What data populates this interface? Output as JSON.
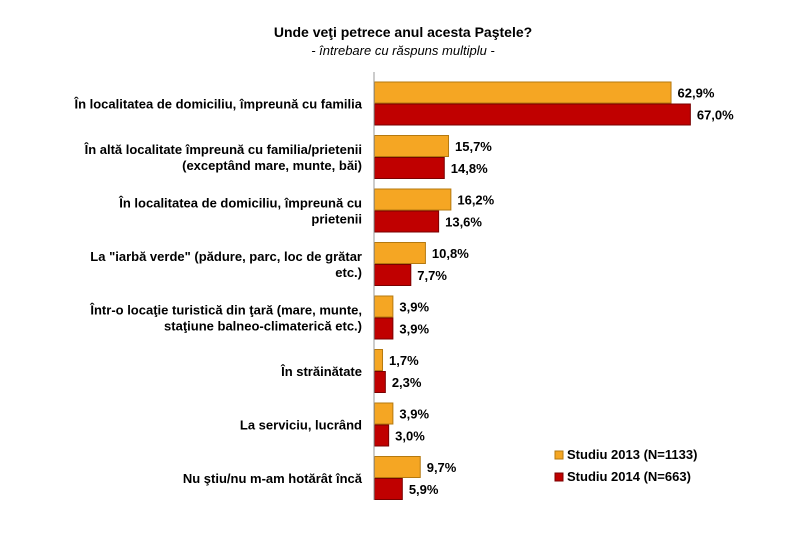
{
  "chart_data": {
    "type": "bar",
    "orientation": "horizontal",
    "title": "Unde veţi petrece anul acesta Paştele?",
    "subtitle": "- întrebare cu răspuns multiplu -",
    "xlabel": "",
    "ylabel": "",
    "xlim": [
      0,
      70
    ],
    "grid": false,
    "legend_position": "bottom-right",
    "categories": [
      [
        "În localitatea de domiciliu, împreună cu familia"
      ],
      [
        "În altă localitate împreună cu familia/prietenii",
        "(exceptând mare, munte, băi)"
      ],
      [
        "În localitatea de domiciliu, împreună cu",
        "prietenii"
      ],
      [
        "La \"iarbă verde\" (pădure, parc, loc de grătar",
        "etc.)"
      ],
      [
        "Într-o locaţie turistică din ţară (mare, munte,",
        "staţiune balneo-climaterică etc.)"
      ],
      [
        "În străinătate"
      ],
      [
        "La serviciu, lucrând"
      ],
      [
        "Nu ştiu/nu m-am hotărât încă"
      ]
    ],
    "series": [
      {
        "name": "Studiu 2013 (N=1133)",
        "color": "#F5A623",
        "border": "#B5790F",
        "values": [
          62.9,
          15.7,
          16.2,
          10.8,
          3.9,
          1.7,
          3.9,
          9.7
        ],
        "labels": [
          "62,9%",
          "15,7%",
          "16,2%",
          "10,8%",
          "3,9%",
          "1,7%",
          "3,9%",
          "9,7%"
        ]
      },
      {
        "name": "Studiu 2014 (N=663)",
        "color": "#C00000",
        "border": "#7A0000",
        "values": [
          67.0,
          14.8,
          13.6,
          7.7,
          3.9,
          2.3,
          3.0,
          5.9
        ],
        "labels": [
          "67,0%",
          "14,8%",
          "13,6%",
          "7,7%",
          "3,9%",
          "2,3%",
          "3,0%",
          "5,9%"
        ]
      }
    ]
  }
}
